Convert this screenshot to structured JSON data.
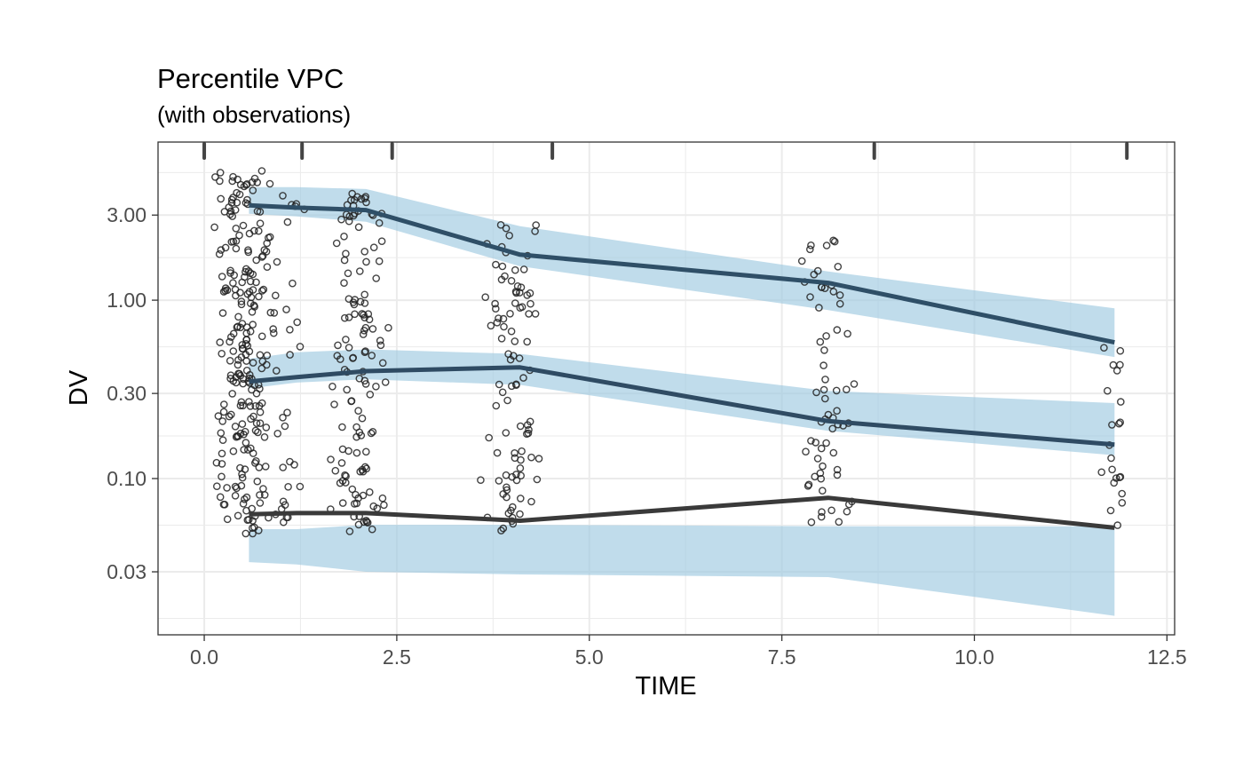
{
  "chart_data": {
    "type": "scatter",
    "title": "Percentile VPC",
    "subtitle": "(with observations)",
    "xlabel": "TIME",
    "ylabel": "DV",
    "x_scale": "linear",
    "y_scale": "log10",
    "xlim": [
      -0.6,
      12.6
    ],
    "ylim": [
      0.0133,
      7.7
    ],
    "x_ticks": [
      0,
      2.5,
      5,
      7.5,
      10,
      12.5
    ],
    "x_tick_labels": [
      "0.0",
      "2.5",
      "5.0",
      "7.5",
      "10.0",
      "12.5"
    ],
    "y_ticks": [
      0.03,
      0.1,
      0.3,
      1,
      3
    ],
    "y_tick_labels": [
      "0.03",
      "0.10",
      "0.30",
      "1.00",
      "3.00"
    ],
    "grid": true,
    "colors": {
      "band": "#9ecae1",
      "median_line": "#2f4b63",
      "outer_line": "#2f4f67",
      "low_line": "#3a3a3a",
      "points": "#222222",
      "grid": "#ebebeb"
    },
    "bin_edges": [
      0,
      1.27,
      2.44,
      4.52,
      8.7,
      11.98
    ],
    "bands": [
      {
        "name": "upper",
        "x": [
          0.58,
          1.2,
          2.1,
          4.1,
          8.1,
          11.82
        ],
        "lo": [
          3.05,
          2.95,
          2.75,
          1.55,
          0.88,
          0.48
        ],
        "hi": [
          4.3,
          4.3,
          4.2,
          2.6,
          1.45,
          0.9
        ]
      },
      {
        "name": "middle",
        "x": [
          0.58,
          1.2,
          2.1,
          4.1,
          8.1,
          11.82
        ],
        "lo": [
          0.32,
          0.345,
          0.36,
          0.335,
          0.185,
          0.135
        ],
        "hi": [
          0.47,
          0.51,
          0.53,
          0.5,
          0.31,
          0.265
        ]
      },
      {
        "name": "lower",
        "x": [
          0.58,
          1.2,
          2.1,
          4.1,
          8.1,
          11.82
        ],
        "lo": [
          0.034,
          0.033,
          0.03,
          0.029,
          0.028,
          0.017
        ],
        "hi": [
          0.052,
          0.052,
          0.055,
          0.055,
          0.054,
          0.054
        ]
      }
    ],
    "series": [
      {
        "name": "observed-upper",
        "x": [
          0.58,
          1.2,
          2.1,
          4.1,
          8.1,
          11.82
        ],
        "y": [
          3.4,
          3.3,
          3.2,
          1.8,
          1.25,
          0.58
        ]
      },
      {
        "name": "observed-median",
        "x": [
          0.58,
          1.2,
          2.1,
          4.1,
          8.1,
          11.82
        ],
        "y": [
          0.35,
          0.37,
          0.4,
          0.42,
          0.21,
          0.155
        ]
      },
      {
        "name": "observed-lower",
        "x": [
          0.58,
          1.2,
          2.1,
          4.1,
          8.1,
          11.82
        ],
        "y": [
          0.063,
          0.064,
          0.064,
          0.058,
          0.078,
          0.053
        ]
      }
    ],
    "observations": {
      "clusters": [
        {
          "center": 0.5,
          "spread": 0.4,
          "n": 230,
          "logmin": -1.32,
          "logmax": 0.73
        },
        {
          "center": 1.05,
          "spread": 0.33,
          "n": 40,
          "logmin": -1.27,
          "logmax": 0.76
        },
        {
          "center": 2.0,
          "spread": 0.42,
          "n": 130,
          "logmin": -1.3,
          "logmax": 0.64
        },
        {
          "center": 4.0,
          "spread": 0.42,
          "n": 95,
          "logmin": -1.32,
          "logmax": 0.43
        },
        {
          "center": 8.1,
          "spread": 0.38,
          "n": 65,
          "logmin": -1.25,
          "logmax": 0.36
        },
        {
          "center": 11.8,
          "spread": 0.2,
          "n": 22,
          "logmin": -1.3,
          "logmax": -0.21
        }
      ]
    }
  }
}
